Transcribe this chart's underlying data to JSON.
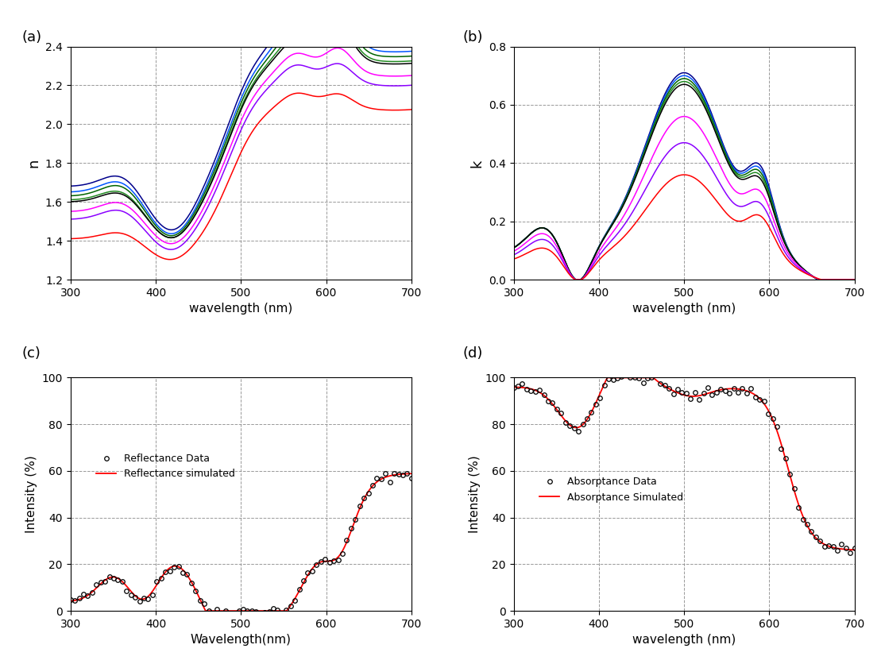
{
  "title_a": "(a)",
  "title_b": "(b)",
  "title_c": "(c)",
  "title_d": "(d)",
  "wavelength_range": [
    300,
    700
  ],
  "n_ylim": [
    1.2,
    2.4
  ],
  "k_ylim": [
    0.0,
    0.8
  ],
  "cd_ylim": [
    0,
    100
  ],
  "n_yticks": [
    1.2,
    1.4,
    1.6,
    1.8,
    2.0,
    2.2,
    2.4
  ],
  "k_yticks": [
    0.0,
    0.2,
    0.4,
    0.6,
    0.8
  ],
  "cd_yticks": [
    0,
    20,
    40,
    60,
    80,
    100
  ],
  "n_xlabel": "wavelength (nm)",
  "k_xlabel": "wavelength (nm)",
  "c_xlabel": "Wavelength(nm)",
  "d_xlabel": "wavelength (nm)",
  "n_ylabel": "n",
  "k_ylabel": "k",
  "cd_ylabel": "Intensity (%)",
  "layer_colors": [
    "#00008B",
    "#0055ff",
    "#006400",
    "#228B22",
    "#000000",
    "#FF00FF",
    "#8B00FF",
    "#FF0000"
  ],
  "legend_c": [
    "Reflectance Data",
    "Reflectance simulated"
  ],
  "legend_d": [
    "Absorptance Data",
    "Absorptance Simulated"
  ],
  "bg_color": "#ffffff",
  "grid_color": "#888888",
  "grid_style": "--",
  "n_base": [
    1.68,
    1.65,
    1.63,
    1.61,
    1.6,
    1.55,
    1.51,
    1.41
  ],
  "n_peak1": [
    0.07,
    0.07,
    0.07,
    0.06,
    0.06,
    0.06,
    0.06,
    0.04
  ],
  "n_dip1": [
    0.24,
    0.23,
    0.22,
    0.21,
    0.2,
    0.18,
    0.17,
    0.12
  ],
  "n_peak2": [
    0.14,
    0.13,
    0.12,
    0.11,
    0.1,
    0.09,
    0.08,
    0.06
  ],
  "n_peak3": [
    0.22,
    0.21,
    0.19,
    0.17,
    0.16,
    0.12,
    0.09,
    0.06
  ],
  "k_base": [
    0.09,
    0.09,
    0.09,
    0.09,
    0.09,
    0.08,
    0.07,
    0.06
  ],
  "k_peak1": [
    0.09,
    0.09,
    0.09,
    0.09,
    0.09,
    0.08,
    0.07,
    0.05
  ],
  "k_main": [
    0.62,
    0.61,
    0.6,
    0.59,
    0.58,
    0.48,
    0.4,
    0.3
  ],
  "k_sec": [
    0.22,
    0.21,
    0.2,
    0.19,
    0.18,
    0.16,
    0.14,
    0.12
  ]
}
